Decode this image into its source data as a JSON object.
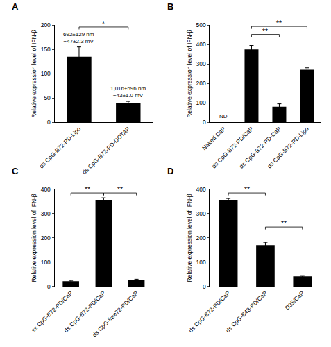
{
  "chart_data": [
    {
      "type": "bar",
      "panel": "A",
      "y_label": "Relative expression level of IFN-β",
      "categories": [
        "ds CpG-B72-PD-Lipo",
        "ds CpG-B72-PD-DOTAP"
      ],
      "values": [
        135,
        40
      ],
      "errors": [
        20,
        3
      ],
      "color": "#000000",
      "ylim": [
        0,
        200
      ],
      "yticks": [
        0,
        50,
        100,
        150,
        200
      ],
      "grid": false,
      "annotations": [
        {
          "category": "ds CpG-B72-PD-Lipo",
          "text": [
            "692±129 nm",
            "−47±2.3 mV"
          ]
        },
        {
          "category": "ds CpG-B72-PD-DOTAP",
          "text": [
            "1,016±596 nm",
            "−43±1.0 mV"
          ]
        }
      ],
      "significance": [
        {
          "from": 0,
          "to": 1,
          "y": 196,
          "text": "*"
        }
      ]
    },
    {
      "type": "bar",
      "panel": "B",
      "y_label": "Relative expression level of IFN-β",
      "categories": [
        "Naked CaP",
        "ds CpG-B72-PD/CaP",
        "ds CpG-B72-PD-CaP",
        "ds CpG-B72-PD-Lipo"
      ],
      "values": [
        null,
        375,
        80,
        270
      ],
      "errors": [
        null,
        20,
        15,
        10
      ],
      "color": "#000000",
      "ylim": [
        0,
        500
      ],
      "yticks": [
        0,
        100,
        200,
        300,
        400,
        500
      ],
      "grid": false,
      "annotations": [
        {
          "category": "Naked CaP",
          "text": [
            "ND"
          ]
        }
      ],
      "significance": [
        {
          "from": 1,
          "to": 3,
          "y": 493,
          "text": "**"
        },
        {
          "from": 1,
          "to": 2,
          "y": 452,
          "text": "**"
        }
      ]
    },
    {
      "type": "bar",
      "panel": "C",
      "y_label": "Relative expression level of IFN-β",
      "categories": [
        "ss CpG-B72-PD/CaP",
        "ds CpG-B72-PD/CaP",
        "ds CpG-free72-PD/CaP"
      ],
      "values": [
        22,
        357,
        28
      ],
      "errors": [
        3,
        8,
        2
      ],
      "color": "#000000",
      "ylim": [
        0,
        400
      ],
      "yticks": [
        0,
        100,
        200,
        300,
        400
      ],
      "grid": false,
      "annotations": [],
      "significance": [
        {
          "from": 0,
          "to": 1,
          "y": 385,
          "text": "**"
        },
        {
          "from": 1,
          "to": 2,
          "y": 385,
          "text": "**"
        }
      ]
    },
    {
      "type": "bar",
      "panel": "D",
      "y_label": "Relative expression level of IFN-β",
      "categories": [
        "ds CpG-B72-PD/CaP",
        "ds CpG-B48-PD/CaP",
        "D35/CaP"
      ],
      "values": [
        357,
        170,
        42
      ],
      "errors": [
        5,
        12,
        3
      ],
      "color": "#000000",
      "ylim": [
        0,
        400
      ],
      "yticks": [
        0,
        100,
        200,
        300,
        400
      ],
      "grid": false,
      "annotations": [],
      "significance": [
        {
          "from": 0,
          "to": 1,
          "y": 385,
          "text": "**"
        },
        {
          "from": 1,
          "to": 2,
          "y": 245,
          "text": "**"
        }
      ]
    }
  ]
}
